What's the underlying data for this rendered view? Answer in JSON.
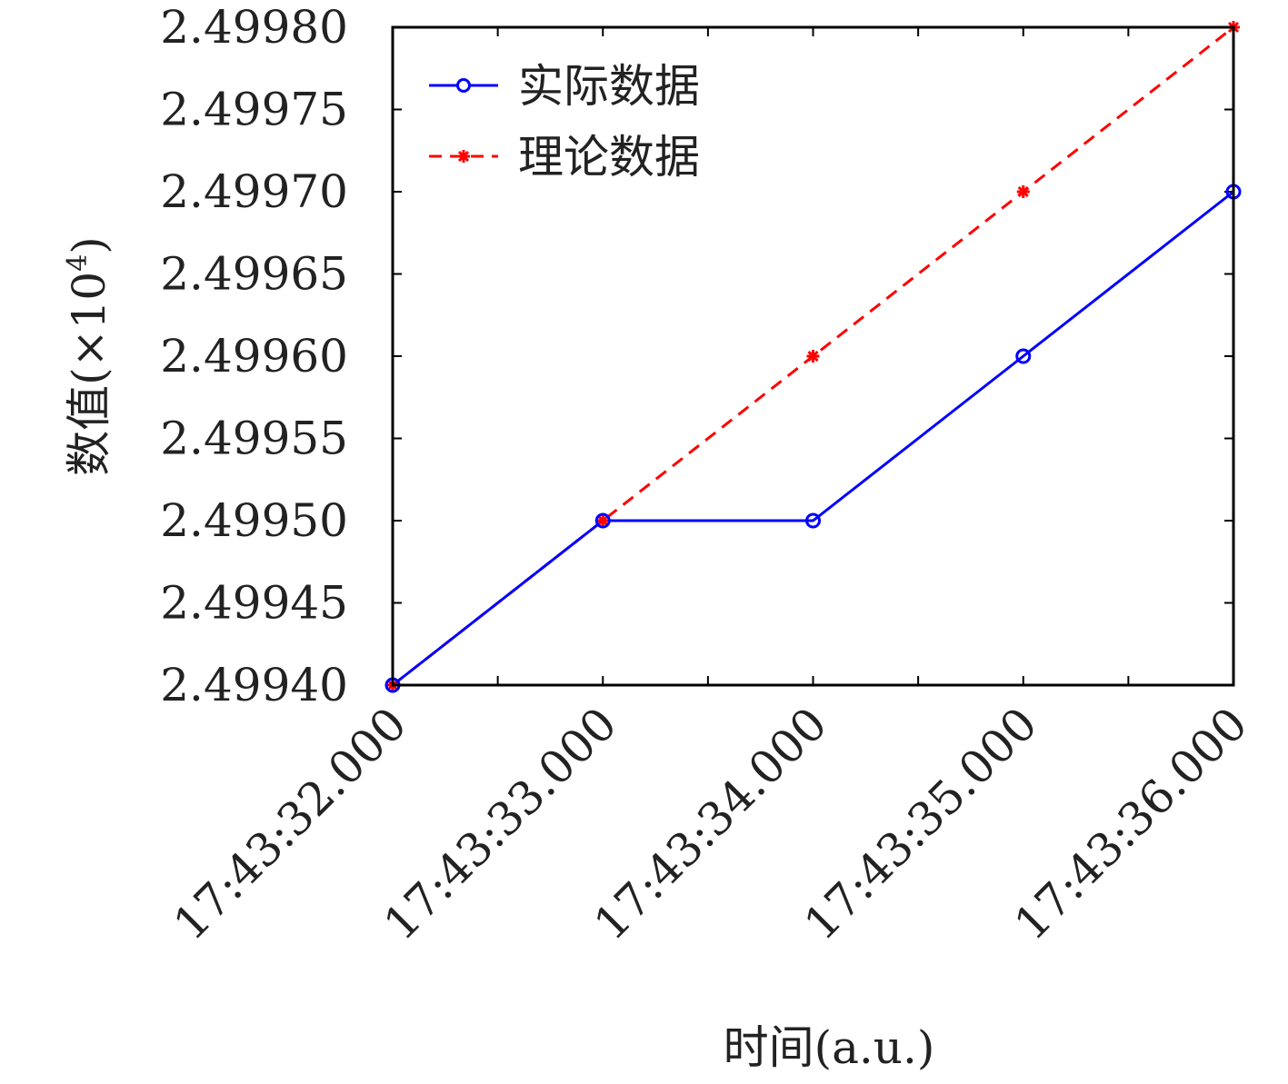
{
  "chart_data": {
    "type": "line",
    "categories": [
      "17:43:32.000",
      "17:43:33.000",
      "17:43:34.000",
      "17:43:35.000",
      "17:43:36.000"
    ],
    "series": [
      {
        "name": "实际数据",
        "values": [
          2.4994,
          2.4995,
          2.4995,
          2.4996,
          2.4997
        ],
        "color": "#0000ff",
        "line_style": "solid",
        "marker": "circle"
      },
      {
        "name": "理论数据",
        "values": [
          2.4994,
          2.4995,
          2.4996,
          2.4997,
          2.4998
        ],
        "color": "#ff0000",
        "line_style": "dashed",
        "marker": "asterisk"
      }
    ],
    "yticks": [
      "2.49940",
      "2.49945",
      "2.49950",
      "2.49955",
      "2.49960",
      "2.49965",
      "2.49970",
      "2.49975",
      "2.49980"
    ],
    "ylim": [
      2.4994,
      2.4998
    ],
    "xlabel": "时间(a.u.)",
    "ylabel": "数值(×10",
    "ylabel_exponent": "4",
    "ylabel_close": ")",
    "legend_position": "top-left",
    "grid": false
  }
}
